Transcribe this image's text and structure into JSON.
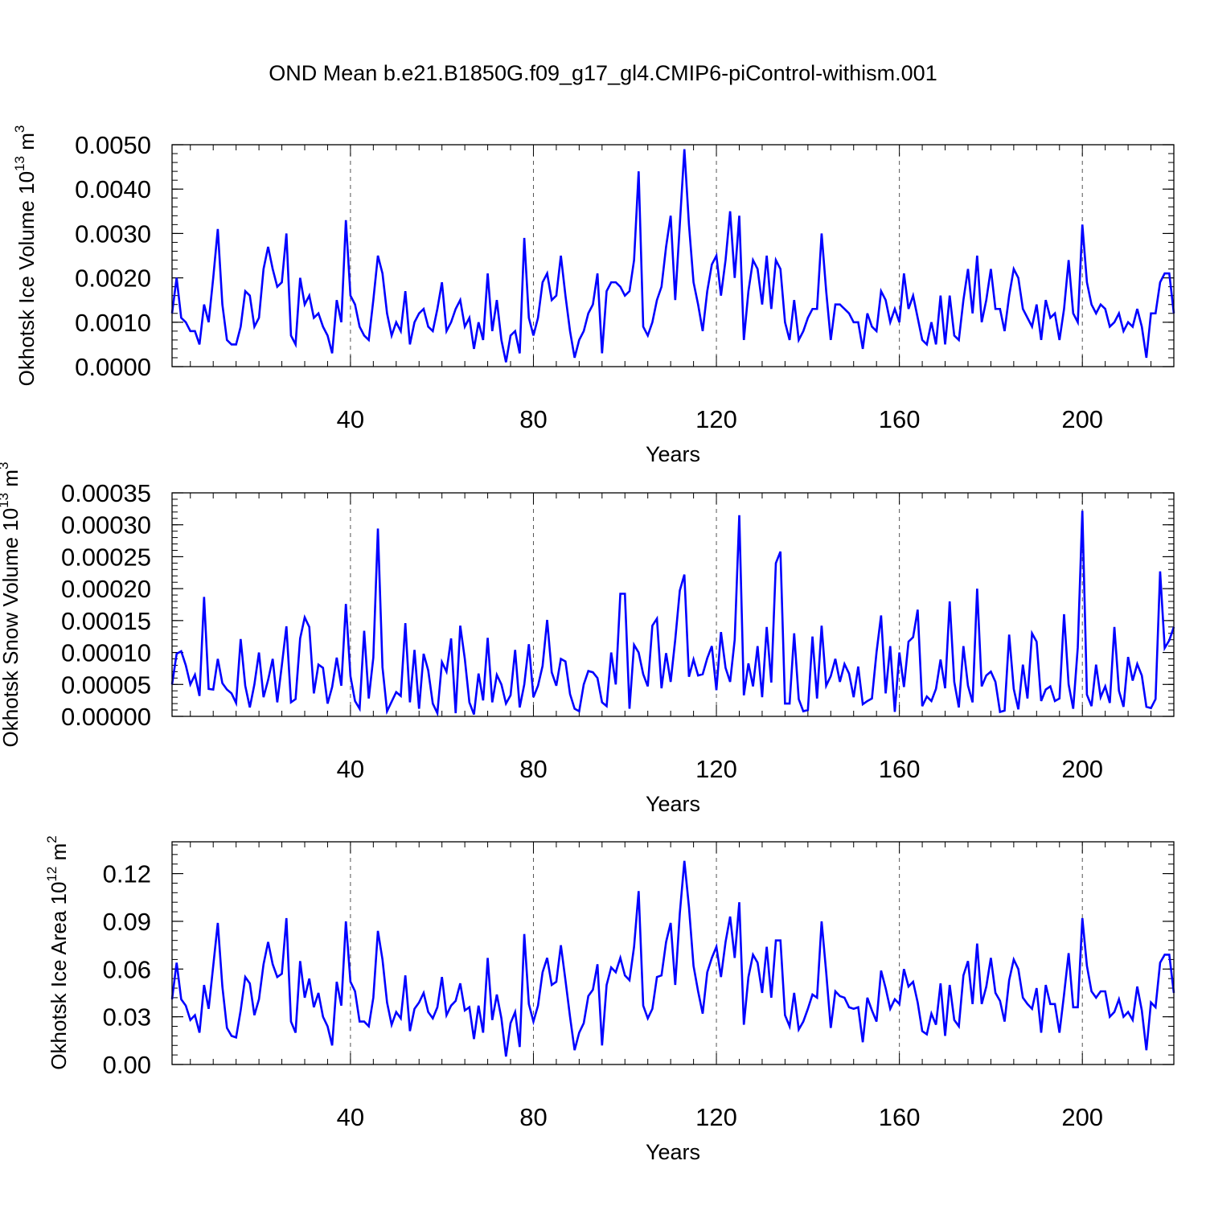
{
  "title": "OND Mean b.e21.B1850G.f09_g17_gl4.CMIP6-piControl-withism.001",
  "chart_data": [
    {
      "type": "line",
      "name": "ice-volume",
      "ylabel_main": "Okhotsk Ice Volume 10",
      "ylabel_exp": "13",
      "ylabel_unit": " m",
      "ylabel_unit_exp": "3",
      "xlabel": "Years",
      "xlim": [
        1,
        220
      ],
      "xticks": [
        40,
        80,
        120,
        160,
        200
      ],
      "xtick_labels": [
        "40",
        "80",
        "120",
        "160",
        "200"
      ],
      "ylim": [
        0,
        0.005
      ],
      "yticks": [
        0,
        0.001,
        0.002,
        0.003,
        0.004,
        0.005
      ],
      "ytick_labels": [
        "0.0000",
        "0.0010",
        "0.0020",
        "0.0030",
        "0.0040",
        "0.0050"
      ],
      "ymax": 0.005,
      "color": "#0000ff",
      "values": [
        0.0012,
        0.002,
        0.0011,
        0.001,
        0.0008,
        0.0008,
        0.0005,
        0.0014,
        0.001,
        0.002,
        0.0031,
        0.0014,
        0.0006,
        0.0005,
        0.0005,
        0.0009,
        0.0017,
        0.0016,
        0.0009,
        0.0011,
        0.0022,
        0.0027,
        0.0022,
        0.0018,
        0.0019,
        0.003,
        0.0007,
        0.0005,
        0.002,
        0.0014,
        0.0016,
        0.0011,
        0.0012,
        0.0009,
        0.0007,
        0.0003,
        0.0015,
        0.001,
        0.0033,
        0.0016,
        0.0014,
        0.0009,
        0.0007,
        0.0006,
        0.0015,
        0.0025,
        0.0021,
        0.0012,
        0.0007,
        0.001,
        0.0008,
        0.0017,
        0.0005,
        0.001,
        0.0012,
        0.0013,
        0.0009,
        0.0008,
        0.0013,
        0.0019,
        0.0008,
        0.001,
        0.0013,
        0.0015,
        0.0009,
        0.0011,
        0.0004,
        0.001,
        0.0006,
        0.0021,
        0.0008,
        0.0015,
        0.0006,
        0.0001,
        0.0007,
        0.0008,
        0.0003,
        0.0029,
        0.0011,
        0.0007,
        0.0011,
        0.0019,
        0.0021,
        0.0015,
        0.0016,
        0.0025,
        0.0016,
        0.0008,
        0.0002,
        0.0006,
        0.0008,
        0.0012,
        0.0014,
        0.0021,
        0.0003,
        0.0017,
        0.0019,
        0.0019,
        0.0018,
        0.0016,
        0.0017,
        0.0024,
        0.0044,
        0.0009,
        0.0007,
        0.001,
        0.0015,
        0.0018,
        0.0027,
        0.0034,
        0.0015,
        0.0032,
        0.0049,
        0.0032,
        0.0019,
        0.0014,
        0.0008,
        0.0017,
        0.0023,
        0.0025,
        0.0016,
        0.0024,
        0.0035,
        0.002,
        0.0034,
        0.0006,
        0.0017,
        0.0024,
        0.0022,
        0.0014,
        0.0025,
        0.0013,
        0.0024,
        0.0022,
        0.001,
        0.0006,
        0.0015,
        0.0006,
        0.0008,
        0.0011,
        0.0013,
        0.0013,
        0.003,
        0.0017,
        0.0006,
        0.0014,
        0.0014,
        0.0013,
        0.0012,
        0.001,
        0.001,
        0.0004,
        0.0012,
        0.0009,
        0.0008,
        0.0017,
        0.0015,
        0.001,
        0.0013,
        0.001,
        0.0021,
        0.0013,
        0.0016,
        0.0011,
        0.0006,
        0.0005,
        0.001,
        0.0005,
        0.0016,
        0.0005,
        0.0016,
        0.0007,
        0.0006,
        0.0015,
        0.0022,
        0.0012,
        0.0025,
        0.001,
        0.0015,
        0.0022,
        0.0013,
        0.0013,
        0.0008,
        0.0016,
        0.0022,
        0.002,
        0.0013,
        0.0011,
        0.0009,
        0.0014,
        0.0006,
        0.0015,
        0.0011,
        0.0012,
        0.0006,
        0.0013,
        0.0024,
        0.0012,
        0.001,
        0.0032,
        0.0019,
        0.0014,
        0.0012,
        0.0014,
        0.0013,
        0.0009,
        0.001,
        0.0012,
        0.0008,
        0.001,
        0.0009,
        0.0013,
        0.0009,
        0.0002,
        0.0012,
        0.0012,
        0.0019,
        0.0021,
        0.0021,
        0.0012
      ]
    },
    {
      "type": "line",
      "name": "snow-volume",
      "ylabel_main": "Okhotsk Snow Volume 10",
      "ylabel_exp": "13",
      "ylabel_unit": " m",
      "ylabel_unit_exp": "3",
      "xlabel": "Years",
      "xlim": [
        1,
        220
      ],
      "xticks": [
        40,
        80,
        120,
        160,
        200
      ],
      "xtick_labels": [
        "40",
        "80",
        "120",
        "160",
        "200"
      ],
      "ylim": [
        0,
        0.00035
      ],
      "yticks": [
        0,
        5e-05,
        0.0001,
        0.00015,
        0.0002,
        0.00025,
        0.0003,
        0.00035
      ],
      "ytick_labels": [
        "0.00000",
        "0.00005",
        "0.00010",
        "0.00015",
        "0.00020",
        "0.00025",
        "0.00030",
        "0.00035"
      ],
      "ymax": 0.00035,
      "color": "#0000ff",
      "values": [
        5e-05,
        9.8e-05,
        0.000102,
        8e-05,
        5e-05,
        6.5e-05,
        3.2e-05,
        0.000187,
        4.3e-05,
        4.2e-05,
        9e-05,
        5.2e-05,
        4.2e-05,
        3.6e-05,
        2.1e-05,
        0.000121,
        4.8e-05,
        1.4e-05,
        5e-05,
        0.0001,
        3e-05,
        5.7e-05,
        9e-05,
        2.2e-05,
        8e-05,
        0.000141,
        2.2e-05,
        2.7e-05,
        0.000122,
        0.000155,
        0.00014,
        3.6e-05,
        8.1e-05,
        7.6e-05,
        2e-05,
        4.6e-05,
        9.2e-05,
        4.8e-05,
        0.000176,
        6.3e-05,
        2.4e-05,
        1.2e-05,
        0.000134,
        2.8e-05,
        9.2e-05,
        0.000294,
        7.7e-05,
        8e-06,
        2.3e-05,
        3.8e-05,
        3.2e-05,
        0.000146,
        2.2e-05,
        0.000104,
        1.2e-05,
        9.8e-05,
        7.2e-05,
        2e-05,
        5e-06,
        8.5e-05,
        7e-05,
        0.000122,
        5e-06,
        0.000142,
        9e-05,
        2.2e-05,
        3e-06,
        6.7e-05,
        2.5e-05,
        0.000123,
        2.2e-05,
        6.5e-05,
        5e-05,
        2e-05,
        3.3e-05,
        0.000104,
        1.4e-05,
        5e-05,
        0.000113,
        3e-05,
        4.8e-05,
        7.9e-05,
        0.000151,
        6.9e-05,
        4.8e-05,
        9e-05,
        8.6e-05,
        3.5e-05,
        1.2e-05,
        8e-06,
        5e-05,
        7.1e-05,
        6.9e-05,
        6e-05,
        2.2e-05,
        1.6e-05,
        0.0001,
        5e-05,
        0.000192,
        0.000192,
        1.2e-05,
        0.000112,
        0.0001,
        6.6e-05,
        4.7e-05,
        0.000142,
        0.000153,
        4.4e-05,
        9.9e-05,
        5.4e-05,
        0.00012,
        0.000197,
        0.000222,
        6.2e-05,
        8.9e-05,
        6.4e-05,
        6.6e-05,
        9.1e-05,
        0.00011,
        4.1e-05,
        0.000132,
        7.6e-05,
        5.4e-05,
        0.00012,
        0.000315,
        3.3e-05,
        8.3e-05,
        4.7e-05,
        0.00011,
        3e-05,
        0.00014,
        5.3e-05,
        0.00024,
        0.000258,
        2e-05,
        2e-05,
        0.00013,
        2.7e-05,
        8e-06,
        1e-05,
        0.000125,
        2.8e-05,
        0.000142,
        4.8e-05,
        6.3e-05,
        9e-05,
        5.4e-05,
        8.2e-05,
        6.7e-05,
        3e-05,
        7.8e-05,
        1.9e-05,
        2.4e-05,
        2.8e-05,
        0.0001,
        0.000158,
        3.6e-05,
        0.00011,
        7e-06,
        0.0001,
        4.6e-05,
        0.000117,
        0.000124,
        0.000167,
        1.6e-05,
        3.1e-05,
        2.4e-05,
        4.3e-05,
        8.9e-05,
        4.4e-05,
        0.00018,
        5.4e-05,
        1.4e-05,
        0.00011,
        4.8e-05,
        2.2e-05,
        0.0002,
        4.7e-05,
        6.4e-05,
        7e-05,
        5.4e-05,
        7e-06,
        9e-06,
        0.000128,
        4.3e-05,
        1.1e-05,
        8.1e-05,
        2.8e-05,
        0.00013,
        0.000117,
        2.4e-05,
        4.2e-05,
        4.7e-05,
        2.4e-05,
        2.8e-05,
        0.00016,
        5e-05,
        1.2e-05,
        0.000108,
        0.000322,
        3.4e-05,
        1.6e-05,
        8.1e-05,
        3e-05,
        4.7e-05,
        2.1e-05,
        0.00014,
        4e-05,
        1.5e-05,
        9.3e-05,
        5.6e-05,
        8.2e-05,
        6.4e-05,
        1.5e-05,
        1.3e-05,
        2.7e-05,
        0.000227,
        0.000107,
        0.000119,
        0.00014
      ]
    },
    {
      "type": "line",
      "name": "ice-area",
      "ylabel_main": "Okhotsk Ice Area 10",
      "ylabel_exp": "12",
      "ylabel_unit": " m",
      "ylabel_unit_exp": "2",
      "xlabel": "Years",
      "xlim": [
        1,
        220
      ],
      "xticks": [
        40,
        80,
        120,
        160,
        200
      ],
      "xtick_labels": [
        "40",
        "80",
        "120",
        "160",
        "200"
      ],
      "ylim": [
        0,
        0.14
      ],
      "yticks": [
        0,
        0.03,
        0.06,
        0.09,
        0.12
      ],
      "ytick_labels": [
        "0.00",
        "0.03",
        "0.06",
        "0.09",
        "0.12"
      ],
      "ymax": 0.14,
      "color": "#0000ff",
      "values": [
        0.041,
        0.064,
        0.041,
        0.037,
        0.028,
        0.031,
        0.02,
        0.05,
        0.035,
        0.062,
        0.089,
        0.049,
        0.023,
        0.018,
        0.017,
        0.034,
        0.055,
        0.051,
        0.031,
        0.041,
        0.063,
        0.077,
        0.063,
        0.055,
        0.057,
        0.092,
        0.027,
        0.02,
        0.065,
        0.042,
        0.054,
        0.036,
        0.045,
        0.03,
        0.024,
        0.012,
        0.052,
        0.037,
        0.09,
        0.052,
        0.046,
        0.027,
        0.027,
        0.024,
        0.042,
        0.084,
        0.066,
        0.039,
        0.025,
        0.033,
        0.029,
        0.056,
        0.021,
        0.035,
        0.039,
        0.045,
        0.033,
        0.029,
        0.036,
        0.055,
        0.031,
        0.037,
        0.04,
        0.051,
        0.034,
        0.036,
        0.016,
        0.037,
        0.02,
        0.067,
        0.028,
        0.044,
        0.029,
        0.005,
        0.026,
        0.033,
        0.011,
        0.082,
        0.038,
        0.027,
        0.037,
        0.058,
        0.067,
        0.05,
        0.052,
        0.075,
        0.053,
        0.03,
        0.009,
        0.02,
        0.026,
        0.043,
        0.047,
        0.063,
        0.012,
        0.05,
        0.061,
        0.058,
        0.067,
        0.056,
        0.053,
        0.074,
        0.109,
        0.037,
        0.029,
        0.035,
        0.055,
        0.056,
        0.077,
        0.089,
        0.05,
        0.095,
        0.128,
        0.099,
        0.062,
        0.046,
        0.032,
        0.058,
        0.067,
        0.074,
        0.055,
        0.077,
        0.093,
        0.067,
        0.102,
        0.025,
        0.055,
        0.069,
        0.064,
        0.045,
        0.074,
        0.042,
        0.078,
        0.078,
        0.031,
        0.024,
        0.045,
        0.022,
        0.027,
        0.035,
        0.044,
        0.042,
        0.09,
        0.058,
        0.023,
        0.046,
        0.043,
        0.042,
        0.036,
        0.035,
        0.036,
        0.014,
        0.042,
        0.034,
        0.027,
        0.059,
        0.048,
        0.035,
        0.041,
        0.038,
        0.06,
        0.049,
        0.052,
        0.039,
        0.021,
        0.019,
        0.032,
        0.025,
        0.051,
        0.018,
        0.05,
        0.028,
        0.024,
        0.056,
        0.065,
        0.038,
        0.076,
        0.038,
        0.049,
        0.067,
        0.045,
        0.04,
        0.027,
        0.053,
        0.066,
        0.06,
        0.042,
        0.038,
        0.035,
        0.048,
        0.02,
        0.05,
        0.038,
        0.038,
        0.02,
        0.044,
        0.07,
        0.036,
        0.036,
        0.092,
        0.062,
        0.046,
        0.042,
        0.046,
        0.046,
        0.03,
        0.033,
        0.041,
        0.03,
        0.033,
        0.028,
        0.049,
        0.034,
        0.009,
        0.039,
        0.036,
        0.064,
        0.069,
        0.069,
        0.045
      ]
    }
  ]
}
